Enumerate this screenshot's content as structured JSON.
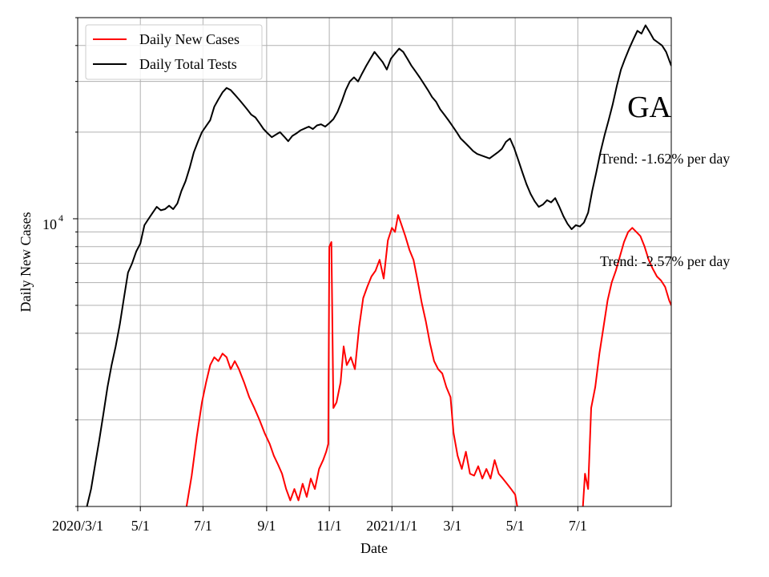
{
  "chart_data": {
    "type": "line",
    "xlabel": "Date",
    "ylabel": "Daily New Cases",
    "yscale": "log",
    "ylim": [
      1000,
      50000
    ],
    "xlim": [
      "2020-03-01",
      "2021-09-30"
    ],
    "grid": true,
    "legend_position": "top-left",
    "x_ticks": [
      {
        "date": "2020-03-01",
        "label": "2020/3/1"
      },
      {
        "date": "2020-05-01",
        "label": "5/1"
      },
      {
        "date": "2020-07-01",
        "label": "7/1"
      },
      {
        "date": "2020-09-01",
        "label": "9/1"
      },
      {
        "date": "2020-11-01",
        "label": "11/1"
      },
      {
        "date": "2021-01-01",
        "label": "2021/1/1"
      },
      {
        "date": "2021-03-01",
        "label": "3/1"
      },
      {
        "date": "2021-05-01",
        "label": "5/1"
      },
      {
        "date": "2021-07-01",
        "label": "7/1"
      }
    ],
    "y_major_tick": {
      "value": 10000,
      "label_base": "10",
      "label_exp": "4"
    },
    "annotations": {
      "state_label": "GA",
      "trend_tests": "Trend: -1.62% per day",
      "trend_cases": "Trend: -2.57% per day"
    },
    "series": [
      {
        "name": "Daily New Cases",
        "color": "#ff0000",
        "points": [
          [
            "2020-06-15",
            1000
          ],
          [
            "2020-06-20",
            1280
          ],
          [
            "2020-06-25",
            1750
          ],
          [
            "2020-06-30",
            2300
          ],
          [
            "2020-07-04",
            2700
          ],
          [
            "2020-07-08",
            3100
          ],
          [
            "2020-07-12",
            3300
          ],
          [
            "2020-07-16",
            3200
          ],
          [
            "2020-07-20",
            3400
          ],
          [
            "2020-07-24",
            3300
          ],
          [
            "2020-07-28",
            3000
          ],
          [
            "2020-08-01",
            3200
          ],
          [
            "2020-08-05",
            3000
          ],
          [
            "2020-08-10",
            2700
          ],
          [
            "2020-08-15",
            2400
          ],
          [
            "2020-08-20",
            2200
          ],
          [
            "2020-08-25",
            2000
          ],
          [
            "2020-08-30",
            1800
          ],
          [
            "2020-09-04",
            1650
          ],
          [
            "2020-09-08",
            1500
          ],
          [
            "2020-09-12",
            1400
          ],
          [
            "2020-09-16",
            1300
          ],
          [
            "2020-09-20",
            1150
          ],
          [
            "2020-09-24",
            1050
          ],
          [
            "2020-09-28",
            1150
          ],
          [
            "2020-10-02",
            1050
          ],
          [
            "2020-10-06",
            1200
          ],
          [
            "2020-10-10",
            1080
          ],
          [
            "2020-10-14",
            1250
          ],
          [
            "2020-10-18",
            1150
          ],
          [
            "2020-10-22",
            1350
          ],
          [
            "2020-10-26",
            1450
          ],
          [
            "2020-10-29",
            1550
          ],
          [
            "2020-10-31",
            1650
          ],
          [
            "2020-11-01",
            8000
          ],
          [
            "2020-11-03",
            8300
          ],
          [
            "2020-11-05",
            2200
          ],
          [
            "2020-11-08",
            2300
          ],
          [
            "2020-11-12",
            2700
          ],
          [
            "2020-11-15",
            3600
          ],
          [
            "2020-11-18",
            3100
          ],
          [
            "2020-11-22",
            3300
          ],
          [
            "2020-11-26",
            3000
          ],
          [
            "2020-11-30",
            4200
          ],
          [
            "2020-12-04",
            5300
          ],
          [
            "2020-12-08",
            5800
          ],
          [
            "2020-12-12",
            6300
          ],
          [
            "2020-12-16",
            6600
          ],
          [
            "2020-12-20",
            7200
          ],
          [
            "2020-12-24",
            6200
          ],
          [
            "2020-12-28",
            8400
          ],
          [
            "2021-01-01",
            9300
          ],
          [
            "2021-01-04",
            9000
          ],
          [
            "2021-01-07",
            10300
          ],
          [
            "2021-01-10",
            9600
          ],
          [
            "2021-01-14",
            8700
          ],
          [
            "2021-01-18",
            7800
          ],
          [
            "2021-01-22",
            7200
          ],
          [
            "2021-01-26",
            6100
          ],
          [
            "2021-01-30",
            5100
          ],
          [
            "2021-02-03",
            4400
          ],
          [
            "2021-02-07",
            3700
          ],
          [
            "2021-02-11",
            3200
          ],
          [
            "2021-02-15",
            3000
          ],
          [
            "2021-02-19",
            2900
          ],
          [
            "2021-02-23",
            2600
          ],
          [
            "2021-02-27",
            2400
          ],
          [
            "2021-03-02",
            1800
          ],
          [
            "2021-03-06",
            1500
          ],
          [
            "2021-03-10",
            1350
          ],
          [
            "2021-03-14",
            1550
          ],
          [
            "2021-03-18",
            1300
          ],
          [
            "2021-03-22",
            1280
          ],
          [
            "2021-03-26",
            1380
          ],
          [
            "2021-03-30",
            1250
          ],
          [
            "2021-04-03",
            1350
          ],
          [
            "2021-04-07",
            1250
          ],
          [
            "2021-04-11",
            1450
          ],
          [
            "2021-04-15",
            1300
          ],
          [
            "2021-04-19",
            1250
          ],
          [
            "2021-04-23",
            1200
          ],
          [
            "2021-04-27",
            1150
          ],
          [
            "2021-05-01",
            1100
          ],
          [
            "2021-05-03",
            1000
          ]
        ],
        "points_after_gap": [
          [
            "2021-07-06",
            1000
          ],
          [
            "2021-07-08",
            1300
          ],
          [
            "2021-07-11",
            1150
          ],
          [
            "2021-07-14",
            2200
          ],
          [
            "2021-07-18",
            2600
          ],
          [
            "2021-07-22",
            3400
          ],
          [
            "2021-07-26",
            4200
          ],
          [
            "2021-07-30",
            5200
          ],
          [
            "2021-08-03",
            6000
          ],
          [
            "2021-08-07",
            6600
          ],
          [
            "2021-08-11",
            7400
          ],
          [
            "2021-08-15",
            8300
          ],
          [
            "2021-08-19",
            9000
          ],
          [
            "2021-08-23",
            9300
          ],
          [
            "2021-08-27",
            9000
          ],
          [
            "2021-08-31",
            8700
          ],
          [
            "2021-09-04",
            8000
          ],
          [
            "2021-09-08",
            7200
          ],
          [
            "2021-09-12",
            6700
          ],
          [
            "2021-09-16",
            6300
          ],
          [
            "2021-09-20",
            6100
          ],
          [
            "2021-09-24",
            5800
          ],
          [
            "2021-09-28",
            5200
          ],
          [
            "2021-09-30",
            5000
          ]
        ]
      },
      {
        "name": "Daily Total Tests",
        "color": "#000000",
        "points": [
          [
            "2020-03-10",
            1000
          ],
          [
            "2020-03-14",
            1150
          ],
          [
            "2020-03-18",
            1400
          ],
          [
            "2020-03-22",
            1700
          ],
          [
            "2020-03-26",
            2100
          ],
          [
            "2020-03-30",
            2600
          ],
          [
            "2020-04-03",
            3100
          ],
          [
            "2020-04-07",
            3600
          ],
          [
            "2020-04-11",
            4300
          ],
          [
            "2020-04-15",
            5300
          ],
          [
            "2020-04-19",
            6500
          ],
          [
            "2020-04-23",
            7000
          ],
          [
            "2020-04-27",
            7700
          ],
          [
            "2020-05-01",
            8200
          ],
          [
            "2020-05-05",
            9500
          ],
          [
            "2020-05-09",
            10000
          ],
          [
            "2020-05-13",
            10500
          ],
          [
            "2020-05-17",
            11000
          ],
          [
            "2020-05-21",
            10700
          ],
          [
            "2020-05-25",
            10800
          ],
          [
            "2020-05-29",
            11100
          ],
          [
            "2020-06-02",
            10800
          ],
          [
            "2020-06-06",
            11300
          ],
          [
            "2020-06-10",
            12500
          ],
          [
            "2020-06-14",
            13500
          ],
          [
            "2020-06-18",
            15000
          ],
          [
            "2020-06-22",
            17000
          ],
          [
            "2020-06-26",
            18500
          ],
          [
            "2020-06-30",
            20000
          ],
          [
            "2020-07-04",
            21000
          ],
          [
            "2020-07-08",
            22000
          ],
          [
            "2020-07-12",
            24500
          ],
          [
            "2020-07-16",
            26000
          ],
          [
            "2020-07-20",
            27500
          ],
          [
            "2020-07-24",
            28500
          ],
          [
            "2020-07-28",
            28000
          ],
          [
            "2020-08-01",
            27000
          ],
          [
            "2020-08-05",
            26000
          ],
          [
            "2020-08-09",
            25000
          ],
          [
            "2020-08-13",
            24000
          ],
          [
            "2020-08-17",
            23000
          ],
          [
            "2020-08-21",
            22500
          ],
          [
            "2020-08-25",
            21500
          ],
          [
            "2020-08-29",
            20500
          ],
          [
            "2020-09-02",
            19800
          ],
          [
            "2020-09-06",
            19200
          ],
          [
            "2020-09-10",
            19600
          ],
          [
            "2020-09-14",
            20000
          ],
          [
            "2020-09-18",
            19300
          ],
          [
            "2020-09-22",
            18600
          ],
          [
            "2020-09-26",
            19400
          ],
          [
            "2020-09-30",
            19800
          ],
          [
            "2020-10-04",
            20300
          ],
          [
            "2020-10-08",
            20600
          ],
          [
            "2020-10-12",
            20900
          ],
          [
            "2020-10-16",
            20500
          ],
          [
            "2020-10-20",
            21100
          ],
          [
            "2020-10-24",
            21300
          ],
          [
            "2020-10-28",
            20900
          ],
          [
            "2020-11-01",
            21500
          ],
          [
            "2020-11-05",
            22200
          ],
          [
            "2020-11-09",
            23500
          ],
          [
            "2020-11-13",
            25500
          ],
          [
            "2020-11-17",
            28000
          ],
          [
            "2020-11-21",
            30000
          ],
          [
            "2020-11-25",
            31000
          ],
          [
            "2020-11-29",
            30000
          ],
          [
            "2020-12-03",
            32000
          ],
          [
            "2020-12-07",
            34000
          ],
          [
            "2020-12-11",
            36000
          ],
          [
            "2020-12-15",
            38000
          ],
          [
            "2020-12-19",
            36500
          ],
          [
            "2020-12-23",
            35000
          ],
          [
            "2020-12-27",
            33000
          ],
          [
            "2020-12-31",
            36000
          ],
          [
            "2021-01-04",
            37500
          ],
          [
            "2021-01-08",
            39000
          ],
          [
            "2021-01-12",
            38000
          ],
          [
            "2021-01-16",
            36000
          ],
          [
            "2021-01-20",
            34000
          ],
          [
            "2021-01-24",
            32500
          ],
          [
            "2021-01-28",
            31000
          ],
          [
            "2021-02-01",
            29500
          ],
          [
            "2021-02-05",
            28000
          ],
          [
            "2021-02-09",
            26500
          ],
          [
            "2021-02-13",
            25500
          ],
          [
            "2021-02-17",
            24000
          ],
          [
            "2021-02-21",
            23000
          ],
          [
            "2021-02-25",
            22000
          ],
          [
            "2021-03-01",
            21000
          ],
          [
            "2021-03-05",
            20000
          ],
          [
            "2021-03-09",
            19000
          ],
          [
            "2021-03-13",
            18400
          ],
          [
            "2021-03-17",
            17800
          ],
          [
            "2021-03-21",
            17200
          ],
          [
            "2021-03-25",
            16800
          ],
          [
            "2021-03-29",
            16600
          ],
          [
            "2021-04-02",
            16400
          ],
          [
            "2021-04-06",
            16200
          ],
          [
            "2021-04-10",
            16600
          ],
          [
            "2021-04-14",
            17000
          ],
          [
            "2021-04-18",
            17500
          ],
          [
            "2021-04-22",
            18500
          ],
          [
            "2021-04-26",
            19000
          ],
          [
            "2021-04-30",
            17600
          ],
          [
            "2021-05-04",
            16000
          ],
          [
            "2021-05-08",
            14500
          ],
          [
            "2021-05-12",
            13200
          ],
          [
            "2021-05-16",
            12200
          ],
          [
            "2021-05-20",
            11500
          ],
          [
            "2021-05-24",
            11000
          ],
          [
            "2021-05-28",
            11200
          ],
          [
            "2021-06-01",
            11600
          ],
          [
            "2021-06-05",
            11400
          ],
          [
            "2021-06-09",
            11800
          ],
          [
            "2021-06-13",
            11000
          ],
          [
            "2021-06-17",
            10200
          ],
          [
            "2021-06-21",
            9600
          ],
          [
            "2021-06-25",
            9200
          ],
          [
            "2021-06-29",
            9500
          ],
          [
            "2021-07-03",
            9400
          ],
          [
            "2021-07-07",
            9700
          ],
          [
            "2021-07-11",
            10500
          ],
          [
            "2021-07-15",
            12500
          ],
          [
            "2021-07-19",
            14500
          ],
          [
            "2021-07-23",
            17000
          ],
          [
            "2021-07-27",
            19500
          ],
          [
            "2021-07-31",
            22000
          ],
          [
            "2021-08-04",
            25000
          ],
          [
            "2021-08-08",
            29000
          ],
          [
            "2021-08-12",
            33000
          ],
          [
            "2021-08-16",
            36000
          ],
          [
            "2021-08-20",
            39000
          ],
          [
            "2021-08-24",
            42000
          ],
          [
            "2021-08-28",
            45000
          ],
          [
            "2021-09-01",
            44000
          ],
          [
            "2021-09-05",
            47000
          ],
          [
            "2021-09-09",
            44500
          ],
          [
            "2021-09-13",
            42000
          ],
          [
            "2021-09-17",
            41000
          ],
          [
            "2021-09-21",
            40000
          ],
          [
            "2021-09-25",
            38000
          ],
          [
            "2021-09-30",
            34000
          ]
        ]
      }
    ]
  }
}
